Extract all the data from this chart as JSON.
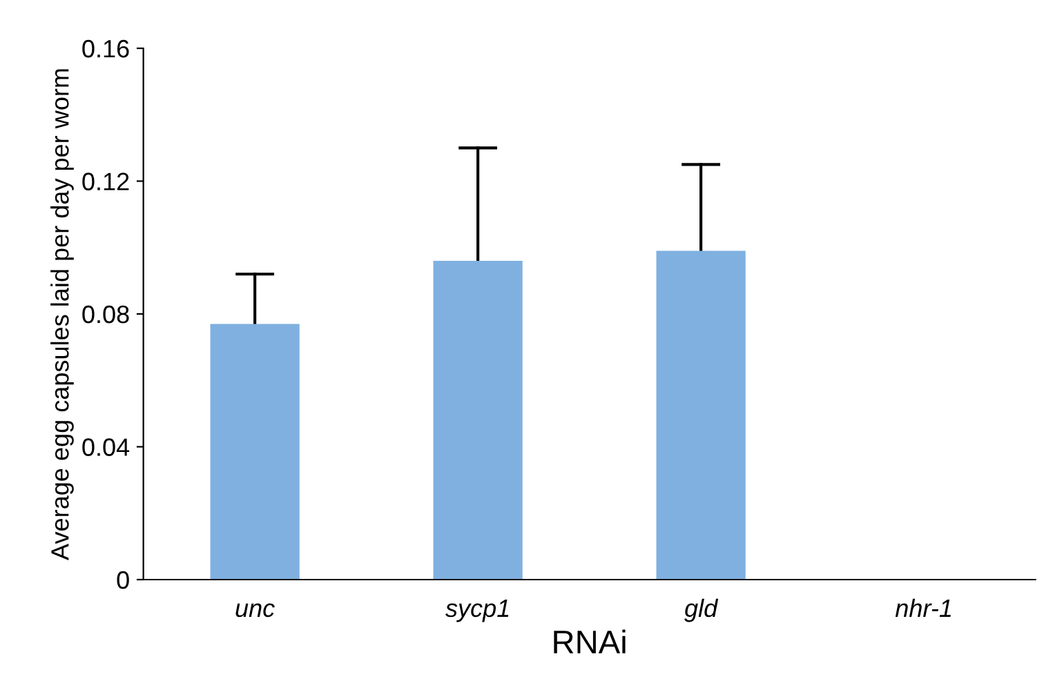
{
  "chart_data": {
    "type": "bar",
    "xlabel": "RNAi",
    "ylabel": "Average egg capsules laid per day per worm",
    "categories": [
      "unc",
      "sycp1",
      "gld",
      "nhr-1"
    ],
    "values": [
      0.077,
      0.096,
      0.099,
      0
    ],
    "errors": [
      [
        0.077,
        0.092
      ],
      [
        0.096,
        0.13
      ],
      [
        0.099,
        0.125
      ],
      null
    ],
    "color": "#7fb0e0",
    "ylim": [
      0,
      0.16
    ],
    "yticks": [
      0,
      0.04,
      0.08,
      0.12,
      0.16
    ],
    "grid": false,
    "legend": false
  }
}
